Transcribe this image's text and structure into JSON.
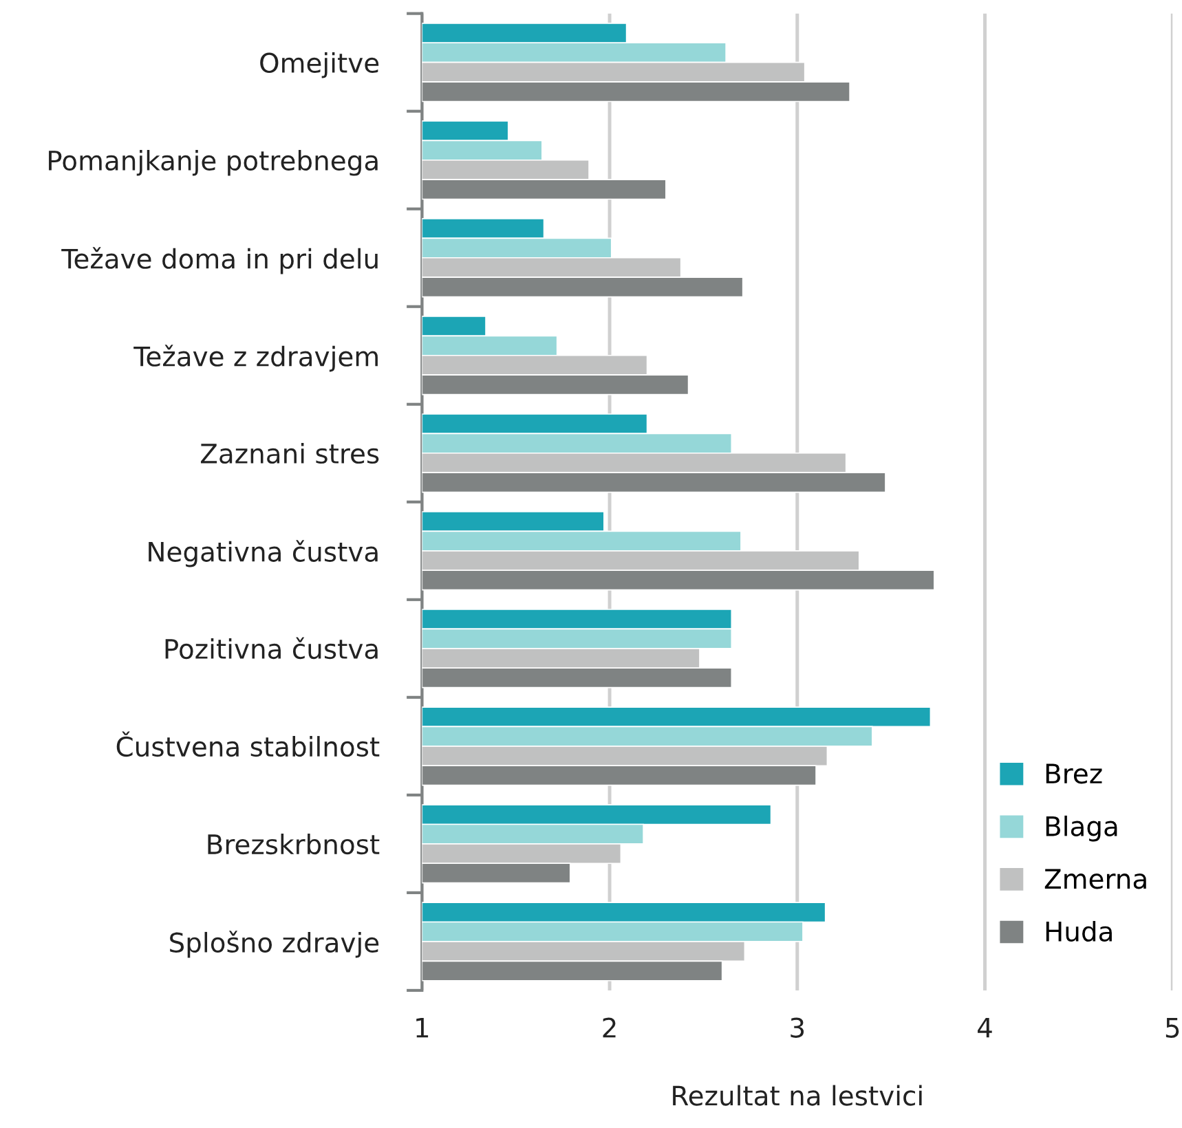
{
  "chart_data": {
    "type": "bar",
    "orientation": "horizontal",
    "xlabel": "Rezultat na lestvici",
    "categories": [
      "Omejitve",
      "Pomanjkanje potrebnega",
      "Težave doma in pri delu",
      "Težave z zdravjem",
      "Zaznani stres",
      "Negativna čustva",
      "Pozitivna čustva",
      "Čustvena stabilnost",
      "Brezskrbnost",
      "Splošno zdravje"
    ],
    "series": [
      {
        "name": "Brez",
        "color": "#1ca5b5",
        "values": [
          2.09,
          1.46,
          1.65,
          1.34,
          2.2,
          1.97,
          2.65,
          3.71,
          2.86,
          3.15
        ]
      },
      {
        "name": "Blaga",
        "color": "#95d7d8",
        "values": [
          2.62,
          1.64,
          2.01,
          1.72,
          2.65,
          2.7,
          2.65,
          3.4,
          2.18,
          3.03
        ]
      },
      {
        "name": "Zmerna",
        "color": "#c0c1c1",
        "values": [
          3.04,
          1.89,
          2.38,
          2.2,
          3.26,
          3.33,
          2.48,
          3.16,
          2.06,
          2.72
        ]
      },
      {
        "name": "Huda",
        "color": "#7f8383",
        "values": [
          3.28,
          2.3,
          2.71,
          2.42,
          3.47,
          3.73,
          2.65,
          3.1,
          1.79,
          2.6
        ]
      }
    ],
    "xlim": [
      1,
      5
    ],
    "xticks": [
      1,
      2,
      3,
      4,
      5
    ],
    "grid": "x",
    "legend": "bottom right"
  }
}
